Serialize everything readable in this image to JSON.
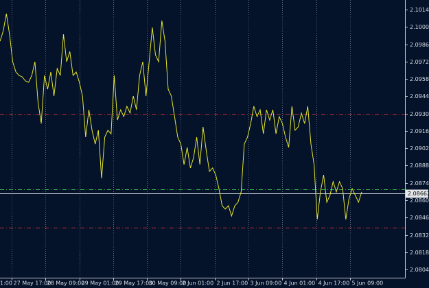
{
  "chart_data": {
    "type": "line",
    "x": [
      10.5,
      12,
      13.5,
      15,
      16.5,
      18,
      19.5,
      21,
      22.5,
      24,
      25.5,
      27,
      28.5,
      30,
      31.5,
      33,
      34.5,
      36,
      37.5,
      39,
      40.5,
      42,
      43.5,
      45,
      46.5,
      48,
      49.5,
      51,
      52.5,
      54,
      55.5,
      57,
      58.5,
      60,
      61.5,
      63,
      64.5,
      66,
      67.5,
      69,
      70.5,
      72,
      73.5,
      75,
      76.5,
      78,
      79.5,
      81,
      82.5,
      84,
      85.5,
      87,
      88.5,
      90,
      91.5,
      93,
      94.5,
      96,
      97.5,
      99,
      100.5,
      102,
      103.5,
      105,
      106.5,
      108,
      109.5,
      111,
      112.5,
      114,
      115.5,
      117,
      118.5,
      120,
      121.5,
      123,
      124.5,
      126,
      127.5,
      129,
      130.5,
      132,
      133.5,
      135,
      136.5,
      138,
      139.5,
      141,
      142.5,
      144,
      145.5,
      147,
      148.5,
      150,
      151.5,
      153,
      154.5,
      156,
      157.5,
      159,
      160.5,
      162,
      163.5,
      165,
      166.5,
      168,
      169.5,
      171,
      172.5,
      174,
      175.5,
      177,
      178.5,
      180,
      181.5
    ],
    "series": [
      {
        "color": "#e8e830",
        "values": [
          2.0989,
          2.09973,
          2.10112,
          2.09946,
          2.09724,
          2.09641,
          2.09613,
          2.09602,
          2.09569,
          2.09558,
          2.09613,
          2.09724,
          2.09392,
          2.09225,
          2.09613,
          2.09502,
          2.09641,
          2.09447,
          2.09669,
          2.09613,
          2.09946,
          2.09724,
          2.09807,
          2.09613,
          2.09641,
          2.09558,
          2.09447,
          2.09115,
          2.09336,
          2.0917,
          2.09059,
          2.0917,
          2.08782,
          2.09115,
          2.0917,
          2.09142,
          2.09613,
          2.09253,
          2.09336,
          2.09281,
          2.09364,
          2.09309,
          2.09447,
          2.09336,
          2.09613,
          2.09724,
          2.09447,
          2.09724,
          2.10001,
          2.09779,
          2.09724,
          2.10056,
          2.0989,
          2.09502,
          2.09447,
          2.09281,
          2.09115,
          2.09059,
          2.08893,
          2.09032,
          2.08866,
          2.08949,
          2.09115,
          2.08893,
          2.09198,
          2.09004,
          2.08838,
          2.08866,
          2.0881,
          2.08699,
          2.08561,
          2.08533,
          2.08561,
          2.08478,
          2.08561,
          2.08589,
          2.08672,
          2.09059,
          2.09115,
          2.09225,
          2.09364,
          2.09281,
          2.09336,
          2.09142,
          2.09336,
          2.09253,
          2.09336,
          2.09142,
          2.09281,
          2.09225,
          2.09115,
          2.09032,
          2.09364,
          2.0917,
          2.09198,
          2.09309,
          2.09225,
          2.09364,
          2.09059,
          2.08893,
          2.0845,
          2.08672,
          2.0881,
          2.08589,
          2.08644,
          2.08755,
          2.08672,
          2.08755,
          2.08699,
          2.0845,
          2.08616,
          2.08699,
          2.08644,
          2.08589,
          2.08672
        ]
      }
    ],
    "xlim": [
      10.48,
      201.97
    ],
    "xticks": [
      {
        "value": 0,
        "label": "1:00"
      },
      {
        "value": 16,
        "label": "27 May 17:00"
      },
      {
        "value": 32,
        "label": "28 May 09:00"
      },
      {
        "value": 48,
        "label": "29 May 01:00"
      },
      {
        "value": 64,
        "label": "29 May 17:00"
      },
      {
        "value": 80,
        "label": "30 May 09:00"
      },
      {
        "value": 96,
        "label": "2 Jun 01:00"
      },
      {
        "value": 112,
        "label": "2 Jun 17:00"
      },
      {
        "value": 128,
        "label": "3 Jun 09:00"
      },
      {
        "value": 144,
        "label": "4 Jun 01:00"
      },
      {
        "value": 160,
        "label": "4 Jun 17:00"
      },
      {
        "value": 176,
        "label": "5 Jun 09:00"
      }
    ],
    "ylim": [
      2.07979,
      2.10223
    ],
    "yticks": [
      2.10145,
      2.10005,
      2.09865,
      2.09725,
      2.09585,
      2.09445,
      2.09305,
      2.09165,
      2.09025,
      2.08885,
      2.08745,
      2.08605,
      2.08465,
      2.08325,
      2.08185,
      2.08045
    ],
    "grid": true,
    "levels": [
      {
        "value": 2.09303,
        "color": "#c83232"
      },
      {
        "value": 2.08693,
        "color": "#2fa84a"
      },
      {
        "value": 2.08384,
        "color": "#c83232"
      }
    ],
    "current_price": 2.08662
  }
}
